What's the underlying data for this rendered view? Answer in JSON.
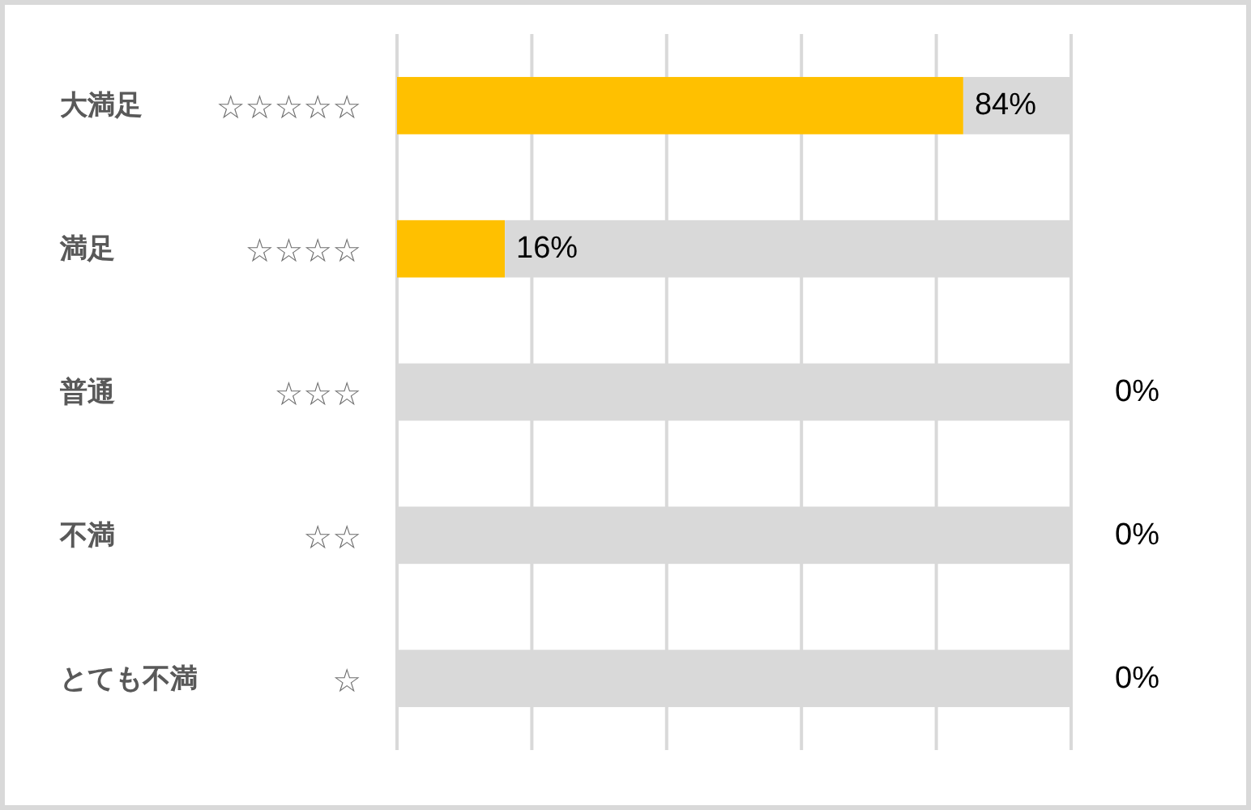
{
  "chart_data": {
    "type": "bar",
    "orientation": "horizontal",
    "stacked": true,
    "categories": [
      "大満足",
      "満足",
      "普通",
      "不満",
      "とても不満"
    ],
    "y2_categories": [
      "☆☆☆☆☆",
      "☆☆☆☆",
      "☆☆☆",
      "☆☆",
      "☆"
    ],
    "series": [
      {
        "color": "#ffc000",
        "values": [
          84,
          16,
          0,
          0,
          0
        ],
        "value_labels": [
          "84%",
          "16%",
          "0%",
          "0%",
          "0%"
        ]
      },
      {
        "color": "#d9d9d9",
        "values": [
          16,
          84,
          100,
          100,
          100
        ]
      }
    ],
    "xlim": [
      0,
      100
    ],
    "xticks": [
      {
        "value": 0,
        "label": null
      },
      {
        "value": 20,
        "label": null
      },
      {
        "value": 40,
        "label": null
      },
      {
        "value": 60,
        "label": null
      },
      {
        "value": 80,
        "label": null
      },
      {
        "value": 100,
        "label": null
      }
    ],
    "grid": "x",
    "tick_labels": "y"
  }
}
